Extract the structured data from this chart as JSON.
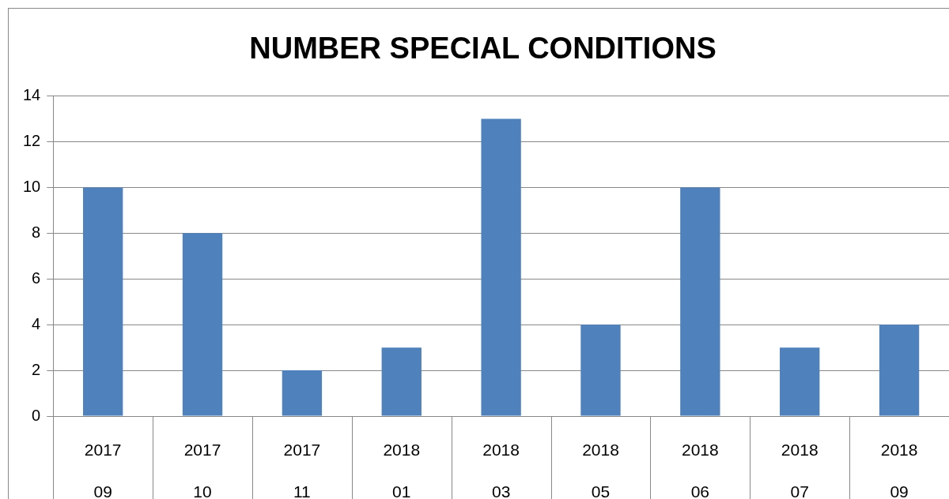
{
  "chart_data": {
    "type": "bar",
    "title": "NUMBER SPECIAL CONDITIONS",
    "categories": [
      "2017 09",
      "2017 10",
      "2017 11",
      "2018 01",
      "2018 03",
      "2018 05",
      "2018 06",
      "2018 07",
      "2018 09"
    ],
    "values": [
      10,
      8,
      2,
      3,
      13,
      4,
      10,
      3,
      4
    ],
    "color": "#4f81bd",
    "ylim": [
      0,
      14
    ],
    "yticks": [
      0,
      2,
      4,
      6,
      8,
      10,
      12,
      14
    ],
    "grid": "y",
    "legend": false
  }
}
